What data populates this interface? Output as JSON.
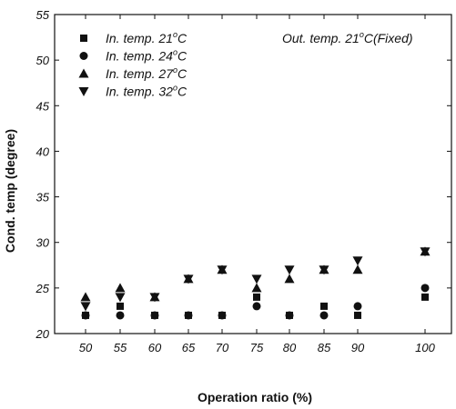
{
  "chart_data": {
    "type": "scatter",
    "xlabel": "Operation ratio (%)",
    "ylabel": "Cond. temp (degree)",
    "x_ticks": [
      50,
      55,
      60,
      65,
      70,
      75,
      80,
      85,
      90,
      100
    ],
    "y_ticks": [
      20,
      25,
      30,
      35,
      40,
      45,
      50,
      55
    ],
    "x_tick_labels": [
      "50",
      "55",
      "60",
      "65",
      "70",
      "75",
      "80",
      "85",
      "90",
      "100"
    ],
    "y_tick_labels": [
      "20",
      "25",
      "30",
      "35",
      "40",
      "45",
      "50",
      "55"
    ],
    "ylim": [
      20,
      55
    ],
    "grid": false,
    "legend_position": "top-left",
    "annotation": {
      "text": "Out. temp. 21",
      "sup": "o",
      "suffix": "C(Fixed)"
    },
    "series": [
      {
        "name": "In. temp. 21",
        "name_sup": "o",
        "name_suffix": "C",
        "marker": "square",
        "x": [
          50,
          55,
          60,
          65,
          70,
          75,
          80,
          85,
          90,
          100
        ],
        "y": [
          22,
          23,
          22,
          22,
          22,
          24,
          22,
          23,
          22,
          24
        ]
      },
      {
        "name": "In. temp. 24",
        "name_sup": "o",
        "name_suffix": "C",
        "marker": "circle",
        "x": [
          50,
          55,
          60,
          65,
          70,
          75,
          80,
          85,
          90,
          100
        ],
        "y": [
          22,
          22,
          22,
          22,
          22,
          23,
          22,
          22,
          23,
          25
        ]
      },
      {
        "name": "In. temp. 27",
        "name_sup": "o",
        "name_suffix": "C",
        "marker": "triangle-up",
        "x": [
          50,
          55,
          60,
          65,
          70,
          75,
          80,
          85,
          90,
          100
        ],
        "y": [
          24,
          25,
          24,
          26,
          27,
          25,
          26,
          27,
          27,
          29
        ]
      },
      {
        "name": "In. temp. 32",
        "name_sup": "o",
        "name_suffix": "C",
        "marker": "triangle-down",
        "x": [
          50,
          55,
          60,
          65,
          70,
          75,
          80,
          85,
          90,
          100
        ],
        "y": [
          23,
          24,
          24,
          26,
          27,
          26,
          27,
          27,
          28,
          29
        ]
      }
    ]
  }
}
